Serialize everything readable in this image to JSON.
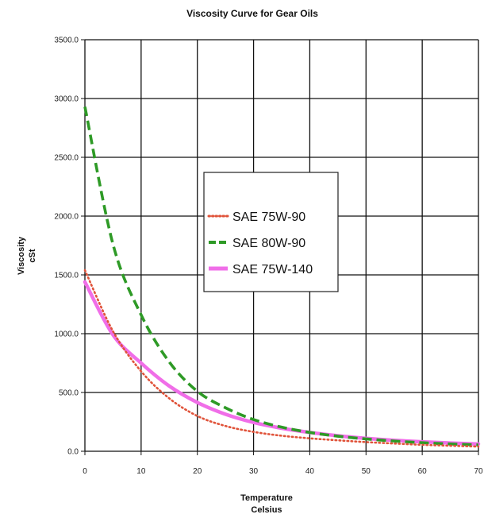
{
  "chart_data": {
    "type": "line",
    "title": "Viscosity Curve for Gear Oils",
    "xlabel": [
      "Temperature",
      "Celsius"
    ],
    "ylabel": [
      "Viscosity",
      "cSt"
    ],
    "xlim": [
      0,
      70
    ],
    "ylim": [
      0,
      3500
    ],
    "xticks": [
      0,
      10,
      20,
      30,
      40,
      50,
      60,
      70
    ],
    "xtick_labels": [
      "0",
      "10",
      "20",
      "30",
      "40",
      "50",
      "60",
      "70"
    ],
    "yticks": [
      0,
      500,
      1000,
      1500,
      2000,
      2500,
      3000,
      3500
    ],
    "ytick_labels": [
      "0.0",
      "500.0",
      "1000.0",
      "1500.0",
      "2000.0",
      "2500.0",
      "3000.0",
      "3500.0"
    ],
    "grid": true,
    "legend_position": "center",
    "x": [
      0,
      5,
      10,
      15,
      20,
      25,
      30,
      35,
      40,
      45,
      50,
      55,
      60,
      65,
      70
    ],
    "series": [
      {
        "name": "SAE 75W-90",
        "color": "#e0533a",
        "style": "dotted",
        "values": [
          1540,
          1020,
          680,
          450,
          300,
          215,
          165,
          132,
          110,
          93,
          78,
          66,
          55,
          47,
          40
        ]
      },
      {
        "name": "SAE 80W-90",
        "color": "#2e9a26",
        "style": "dashed",
        "values": [
          2930,
          1760,
          1160,
          760,
          510,
          370,
          270,
          205,
          160,
          128,
          105,
          87,
          73,
          62,
          54
        ]
      },
      {
        "name": "SAE 75W-140",
        "color": "#f06ee8",
        "style": "solid",
        "values": [
          1440,
          990,
          750,
          555,
          415,
          315,
          245,
          196,
          160,
          132,
          110,
          93,
          80,
          70,
          62
        ]
      }
    ]
  }
}
